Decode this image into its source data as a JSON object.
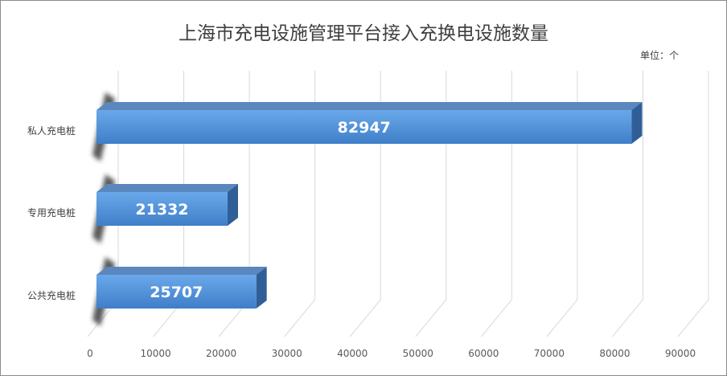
{
  "chart_data": {
    "type": "bar",
    "orientation": "horizontal",
    "style": "3d",
    "title": "上海市充电设施管理平台接入充换电设施数量",
    "unit": "单位：个",
    "categories": [
      "私人充电桩",
      "专用充电桩",
      "公共充电桩"
    ],
    "values": [
      82947,
      21332,
      25707
    ],
    "data_labels": [
      "82947",
      "21332",
      "25707"
    ],
    "xlim": [
      0,
      90000
    ],
    "xticks": [
      0,
      10000,
      20000,
      30000,
      40000,
      50000,
      60000,
      70000,
      80000,
      90000
    ],
    "xtick_labels": [
      "0",
      "10000",
      "20000",
      "30000",
      "40000",
      "50000",
      "60000",
      "70000",
      "80000",
      "90000"
    ],
    "grid": true,
    "legend": "none",
    "bar_color": "#4a90d9"
  }
}
